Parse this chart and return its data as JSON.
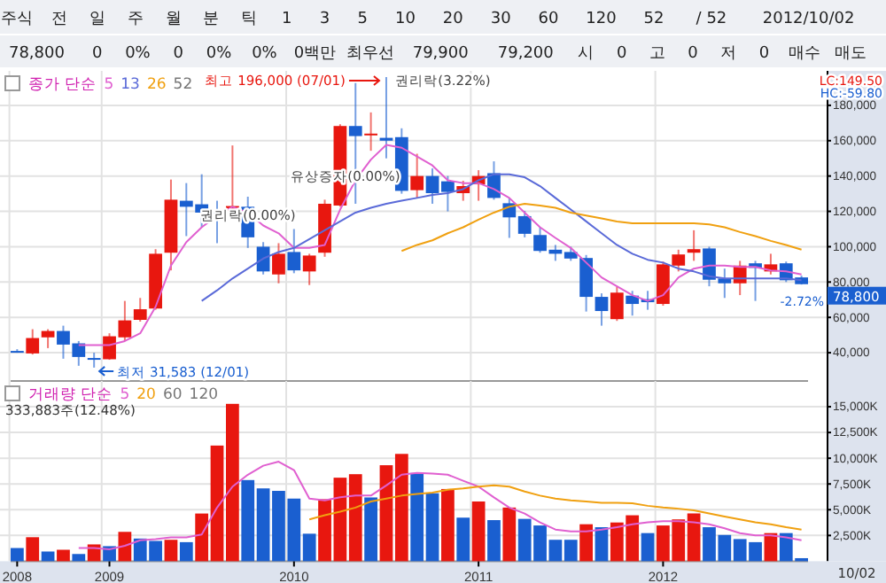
{
  "chart_data": [
    {
      "type": "other",
      "annotations": [
        "주식",
        "전",
        "일",
        "주",
        "월",
        "분",
        "틱",
        "1",
        "3",
        "5",
        "10",
        "20",
        "30",
        "60",
        "120",
        "52",
        "/ 52",
        "2012/10/02"
      ]
    },
    {
      "type": "other",
      "annotations": [
        "78,800",
        "0",
        "0%",
        "0",
        "0%",
        "0%",
        "0백만",
        "최우선",
        "79,900",
        "79,200",
        "시",
        "0",
        "고",
        "0",
        "저",
        "0",
        "매수",
        "매도"
      ]
    },
    {
      "type": "candlestick",
      "legend_title": "종가 단순",
      "legend": "top left",
      "grid": true,
      "tick_labels": "y",
      "categories": [
        "2008",
        null,
        null,
        null,
        null,
        null,
        "2009",
        null,
        null,
        null,
        null,
        null,
        null,
        null,
        null,
        null,
        null,
        null,
        "2010",
        null,
        null,
        null,
        null,
        null,
        null,
        null,
        null,
        null,
        null,
        null,
        "2011",
        null,
        null,
        null,
        null,
        null,
        null,
        null,
        null,
        null,
        null,
        null,
        "2012",
        null,
        null,
        null,
        null,
        null,
        null,
        null,
        null,
        null
      ],
      "ohlc": [
        [
          41000,
          42000,
          40000,
          40000
        ],
        [
          39600,
          53300,
          39000,
          48300
        ],
        [
          48700,
          53300,
          42600,
          52300
        ],
        [
          52300,
          55300,
          36600,
          44600
        ],
        [
          45300,
          46600,
          32600,
          37600
        ],
        [
          37000,
          40000,
          31583,
          36000
        ],
        [
          36300,
          51000,
          36000,
          49300
        ],
        [
          48700,
          69300,
          46600,
          58300
        ],
        [
          58600,
          71000,
          57600,
          64600
        ],
        [
          65000,
          98600,
          64300,
          96000
        ],
        [
          96600,
          138000,
          86600,
          126600
        ],
        [
          126000,
          136000,
          106000,
          122600
        ],
        [
          124000,
          141000,
          111000,
          119300
        ],
        [
          119300,
          126000,
          102000,
          117000
        ],
        [
          120300,
          157300,
          119300,
          123000
        ],
        [
          122600,
          128300,
          99300,
          105300
        ],
        [
          100000,
          102600,
          84300,
          86000
        ],
        [
          84300,
          102000,
          79300,
          96000
        ],
        [
          97000,
          110000,
          85000,
          86600
        ],
        [
          86000,
          96000,
          78300,
          95000
        ],
        [
          96600,
          126600,
          94300,
          124300
        ],
        [
          123300,
          169300,
          122600,
          168300
        ],
        [
          168300,
          192600,
          124300,
          162600
        ],
        [
          163300,
          176000,
          154300,
          164000
        ],
        [
          161600,
          196000,
          150000,
          160000
        ],
        [
          162000,
          167000,
          130000,
          131600
        ],
        [
          132000,
          152600,
          127600,
          140000
        ],
        [
          140000,
          144300,
          124300,
          130300
        ],
        [
          137000,
          140000,
          120000,
          131000
        ],
        [
          130300,
          137300,
          126000,
          134300
        ],
        [
          135300,
          143300,
          126000,
          140000
        ],
        [
          141600,
          148300,
          126600,
          127600
        ],
        [
          124600,
          127600,
          105000,
          116600
        ],
        [
          117300,
          120300,
          105300,
          107300
        ],
        [
          106600,
          111000,
          96600,
          97600
        ],
        [
          98300,
          101000,
          92000,
          96000
        ],
        [
          97000,
          100000,
          92000,
          93300
        ],
        [
          93600,
          95300,
          63300,
          71600
        ],
        [
          71600,
          73600,
          55300,
          63600
        ],
        [
          59000,
          77300,
          58000,
          74000
        ],
        [
          72300,
          75000,
          61000,
          67600
        ],
        [
          70300,
          75000,
          64300,
          68600
        ],
        [
          67600,
          91600,
          66600,
          90000
        ],
        [
          89300,
          98300,
          86000,
          95600
        ],
        [
          96600,
          109300,
          92000,
          98600
        ],
        [
          99000,
          100000,
          77600,
          81300
        ],
        [
          82000,
          87600,
          71000,
          79300
        ],
        [
          79300,
          92000,
          72600,
          89300
        ],
        [
          90600,
          92000,
          69300,
          88000
        ],
        [
          86000,
          96000,
          84300,
          90000
        ],
        [
          90600,
          91600,
          80000,
          81000
        ],
        [
          82600,
          83600,
          78600,
          78800
        ]
      ],
      "series": [
        {
          "type": "line",
          "name": "5",
          "color": "#e060d0",
          "values": [
            null,
            null,
            null,
            null,
            44300,
            44300,
            44300,
            46600,
            51000,
            66000,
            89300,
            102600,
            111000,
            117600,
            122600,
            119300,
            112000,
            107600,
            99300,
            99300,
            101000,
            121000,
            137600,
            149300,
            157600,
            156000,
            151000,
            146000,
            137600,
            136000,
            136000,
            132600,
            127600,
            119300,
            111000,
            105000,
            99300,
            91000,
            82600,
            77600,
            72600,
            69300,
            72600,
            82600,
            87600,
            89300,
            89300,
            88600,
            88600,
            86600,
            86000,
            84300
          ]
        },
        {
          "type": "line",
          "name": "13",
          "color": "#5a6ad8",
          "values": [
            null,
            null,
            null,
            null,
            null,
            null,
            null,
            null,
            null,
            null,
            null,
            null,
            69300,
            75300,
            82000,
            87600,
            93300,
            97000,
            99300,
            104300,
            109300,
            114300,
            119300,
            122000,
            124300,
            126000,
            127600,
            129300,
            130300,
            132600,
            137600,
            141000,
            141000,
            139300,
            134300,
            127600,
            121000,
            114300,
            107600,
            101000,
            96000,
            92600,
            91000,
            87600,
            86000,
            83300,
            82000,
            82000,
            82000,
            82000,
            82000,
            81000
          ]
        },
        {
          "type": "line",
          "name": "26",
          "color": "#f0a010",
          "values": [
            null,
            null,
            null,
            null,
            null,
            null,
            null,
            null,
            null,
            null,
            null,
            null,
            null,
            null,
            null,
            null,
            null,
            null,
            null,
            null,
            null,
            null,
            null,
            null,
            null,
            97600,
            101000,
            103600,
            107600,
            111000,
            115300,
            119300,
            122600,
            124300,
            123300,
            122000,
            119300,
            117600,
            116000,
            114300,
            113300,
            113300,
            113300,
            113300,
            113300,
            112600,
            111000,
            108300,
            106000,
            103300,
            101000,
            98300
          ]
        }
      ],
      "ylim": [
        24000,
        199500
      ],
      "yticks": [
        {
          "value": 40000,
          "label": "40,000"
        },
        {
          "value": 60000,
          "label": "60,000"
        },
        {
          "value": 80000,
          "label": "80,000"
        },
        {
          "value": 100000,
          "label": "100,000"
        },
        {
          "value": 120000,
          "label": "120,000"
        },
        {
          "value": 140000,
          "label": "140,000"
        },
        {
          "value": 160000,
          "label": "160,000"
        },
        {
          "value": 180000,
          "label": "180,000"
        }
      ],
      "annotations": [
        "최고 196,000 (07/01)",
        "최저 31,583 (12/01)",
        "권리락(3.22%)",
        "권리락(0.00%)",
        "유상증자(0.00%)",
        "52",
        "78,800",
        "-2.72%",
        "LC:149.50",
        "HC:-59.80"
      ]
    },
    {
      "type": "bar",
      "legend_title": "거래량 단순",
      "legend": "top left",
      "grid": true,
      "categories": [
        "2008",
        null,
        null,
        null,
        null,
        null,
        "2009",
        null,
        null,
        null,
        null,
        null,
        null,
        null,
        null,
        null,
        null,
        null,
        "2010",
        null,
        null,
        null,
        null,
        null,
        null,
        null,
        null,
        null,
        null,
        null,
        "2011",
        null,
        null,
        null,
        null,
        null,
        null,
        null,
        null,
        null,
        null,
        null,
        "2012",
        null,
        null,
        null,
        null,
        null,
        null,
        null,
        null,
        null
      ],
      "values": [
        1280,
        2330,
        940,
        1110,
        700,
        1630,
        1460,
        2850,
        2200,
        1970,
        2080,
        1850,
        4630,
        11230,
        15280,
        7880,
        7070,
        6830,
        6080,
        2670,
        6020,
        8110,
        8450,
        6190,
        9320,
        10420,
        8570,
        6600,
        7010,
        4230,
        5800,
        3990,
        5210,
        4110,
        3470,
        2080,
        2080,
        3590,
        3300,
        3760,
        4460,
        2730,
        3470,
        4060,
        4640,
        3300,
        2550,
        2150,
        1850,
        2730,
        2730,
        295
      ],
      "colors": [
        "#1a5fd0",
        "#e8170f",
        "#1a5fd0",
        "#e8170f",
        "#1a5fd0",
        "#e8170f",
        "#1a5fd0",
        "#e8170f",
        "#1a5fd0",
        "#1a5fd0",
        "#e8170f",
        "#1a5fd0",
        "#e8170f",
        "#e8170f",
        "#e8170f",
        "#1a5fd0",
        "#1a5fd0",
        "#1a5fd0",
        "#1a5fd0",
        "#1a5fd0",
        "#e8170f",
        "#e8170f",
        "#e8170f",
        "#1a5fd0",
        "#e8170f",
        "#e8170f",
        "#1a5fd0",
        "#1a5fd0",
        "#e8170f",
        "#1a5fd0",
        "#e8170f",
        "#1a5fd0",
        "#e8170f",
        "#1a5fd0",
        "#1a5fd0",
        "#1a5fd0",
        "#1a5fd0",
        "#e8170f",
        "#1a5fd0",
        "#e8170f",
        "#e8170f",
        "#1a5fd0",
        "#e8170f",
        "#e8170f",
        "#e8170f",
        "#1a5fd0",
        "#1a5fd0",
        "#1a5fd0",
        "#1a5fd0",
        "#e8170f",
        "#1a5fd0",
        "#1a5fd0"
      ],
      "series": [
        {
          "type": "line",
          "name": "5",
          "color": "#e060d0",
          "values": [
            null,
            null,
            null,
            null,
            1280,
            1280,
            1160,
            1500,
            2030,
            2150,
            2320,
            2320,
            2600,
            5210,
            7240,
            8400,
            9270,
            9670,
            8850,
            6080,
            5900,
            6200,
            6370,
            6370,
            7360,
            8400,
            8580,
            8510,
            8400,
            7810,
            7240,
            6200,
            5210,
            4630,
            3770,
            3070,
            2900,
            2900,
            3070,
            3300,
            3590,
            3770,
            3890,
            3890,
            3770,
            3590,
            3190,
            2730,
            2500,
            2500,
            2320,
            2030
          ]
        },
        {
          "type": "line",
          "name": "20",
          "color": "#f0a010",
          "values": [
            null,
            null,
            null,
            null,
            null,
            null,
            null,
            null,
            null,
            null,
            null,
            null,
            null,
            null,
            null,
            null,
            null,
            null,
            null,
            4060,
            4460,
            4810,
            5210,
            5800,
            6080,
            6370,
            6540,
            6660,
            6940,
            7070,
            7240,
            7360,
            7240,
            6770,
            6370,
            6080,
            5900,
            5800,
            5680,
            5680,
            5630,
            5380,
            5210,
            5100,
            4930,
            4630,
            4340,
            4060,
            3770,
            3590,
            3300,
            3070
          ]
        }
      ],
      "ylim": [
        0,
        17500
      ],
      "yticks": [
        {
          "value": 2500,
          "label": "2,500K"
        },
        {
          "value": 5000,
          "label": "5,000K"
        },
        {
          "value": 7500,
          "label": "7,500K"
        },
        {
          "value": 10000,
          "label": "10,000K"
        },
        {
          "value": 12500,
          "label": "12,500K"
        },
        {
          "value": 15000,
          "label": "15,000K"
        }
      ],
      "annotations": [
        "60",
        "120",
        "333,883주(12.48%)",
        "10/02"
      ]
    }
  ]
}
